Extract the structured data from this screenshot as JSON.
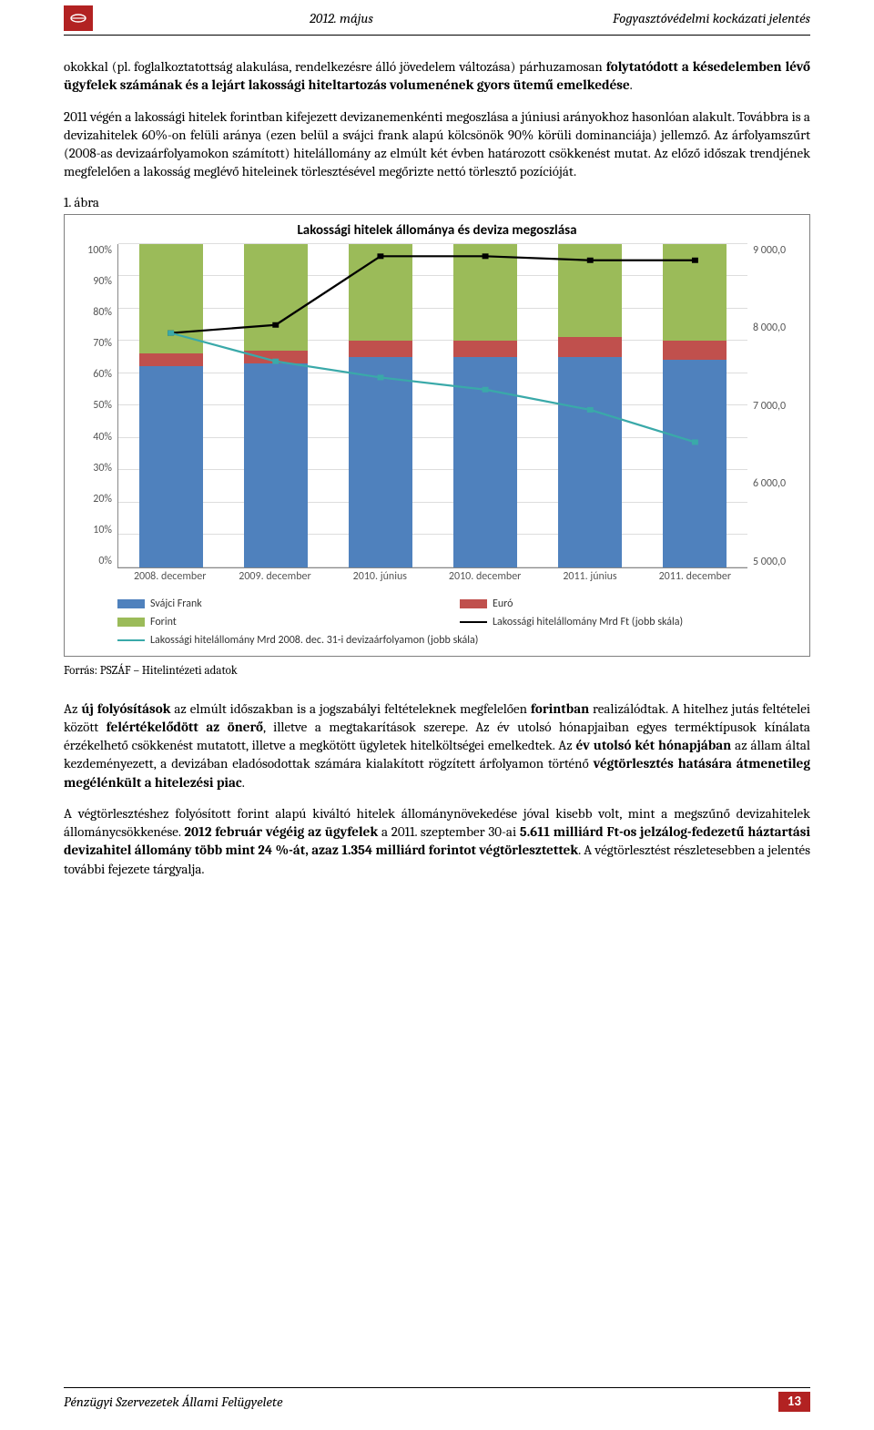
{
  "header": {
    "date": "2012. május",
    "title": "Fogyasztóvédelmi kockázati jelentés"
  },
  "body": {
    "p1_a": "okokkal (pl. foglalkoztatottság alakulása, rendelkezésre álló jövedelem változása) párhuzamosan ",
    "p1_b": "folytatódott a késedelemben lévő ügyfelek számának és a lejárt lakossági hiteltartozás volumenének gyors ütemű emelkedése",
    "p1_c": ".",
    "p2": "2011 végén a lakossági hitelek forintban kifejezett devizanemenkénti megoszlása a júniusi arányokhoz hasonlóan alakult. Továbbra is a devizahitelek 60%-on felüli aránya (ezen belül a svájci frank alapú kölcsönök 90% körüli dominanciája) jellemző. Az árfolyamszűrt (2008-as devizaárfolyamokon számított) hitelállomány az elmúlt két évben határozott csökkenést mutat. Az előző időszak trendjének megfelelően a lakosság meglévő hiteleinek törlesztésével megőrizte nettó törlesztő pozícióját.",
    "fig_label": "1. ábra",
    "p3_plain_a": "Az ",
    "p3_bold_a": "új folyósítások",
    "p3_plain_b": " az elmúlt időszakban is a jogszabályi feltételeknek megfelelően ",
    "p3_bold_b": "forintban",
    "p3_plain_c": " realizálódtak. A hitelhez jutás feltételei között ",
    "p3_bold_c": "felértékelődött az önerő",
    "p3_plain_d": ", illetve a megtakarítások szerepe. Az év utolsó hónapjaiban egyes terméktípusok kínálata érzékelhető csökkenést mutatott, illetve a megkötött ügyletek hitelköltségei emelkedtek. Az ",
    "p3_bold_d": "év utolsó két hónapjában",
    "p3_plain_e": " az állam által kezdeményezett, a devizában eladósodottak számára kialakított rögzített árfolyamon történő ",
    "p3_bold_e": "végtörlesztés hatására átmenetileg megélénkült a hitelezési piac",
    "p3_plain_f": ".",
    "p4_a": "A végtörlesztéshez folyósított forint alapú kiváltó hitelek állománynövekedése jóval kisebb volt, mint a megszűnő devizahitelek állománycsökkenése. ",
    "p4_b": "2012 február végéig az ügyfelek",
    "p4_c": " a 2011. szeptember 30-ai ",
    "p4_d": "5.611 milliárd Ft-os jelzálog-fedezetű háztartási devizahitel állomány több mint 24 %-át, azaz 1.354 milliárd forintot végtörlesztettek",
    "p4_e": ". A végtörlesztést részletesebben a jelentés további fejezete tárgyalja.",
    "source": "Forrás: PSZÁF – Hitelintézeti adatok"
  },
  "chart": {
    "title": "Lakossági hitelek állománya és deviza megoszlása",
    "categories": [
      "2008. december",
      "2009. december",
      "2010. június",
      "2010. december",
      "2011. június",
      "2011. december"
    ],
    "left_ticks": [
      "100%",
      "90%",
      "80%",
      "70%",
      "60%",
      "50%",
      "40%",
      "30%",
      "20%",
      "10%",
      "0%"
    ],
    "right_ticks": [
      "9 000,0",
      "8 000,0",
      "7 000,0",
      "6 000,0",
      "5 000,0"
    ],
    "colors": {
      "chf": "#4f81bd",
      "eur": "#c0504d",
      "huf": "#9bbb59",
      "line_black": "#000000",
      "line_teal": "#3aa9a9",
      "grid": "#dddddd",
      "border": "#7f7f7f"
    },
    "stacks": [
      {
        "chf": 62,
        "eur": 4,
        "huf": 34
      },
      {
        "chf": 63,
        "eur": 4,
        "huf": 33
      },
      {
        "chf": 65,
        "eur": 5,
        "huf": 30
      },
      {
        "chf": 65,
        "eur": 5,
        "huf": 30
      },
      {
        "chf": 65,
        "eur": 6,
        "huf": 29
      },
      {
        "chf": 64,
        "eur": 6,
        "huf": 30
      }
    ],
    "black_line_right": [
      7900,
      8000,
      8850,
      8850,
      8800,
      8800
    ],
    "teal_line_right": [
      7900,
      7550,
      7350,
      7200,
      6950,
      6550
    ],
    "right_axis": {
      "min": 5000,
      "max": 9000
    },
    "legend": {
      "chf": "Svájci Frank",
      "eur": "Euró",
      "huf": "Forint",
      "black": "Lakossági hitelállomány Mrd Ft (jobb skála)",
      "teal": "Lakossági hitelállomány Mrd 2008. dec. 31-i devizaárfolyamon (jobb skála)"
    }
  },
  "footer": {
    "org": "Pénzügyi Szervezetek Állami Felügyelete",
    "page": "13"
  }
}
